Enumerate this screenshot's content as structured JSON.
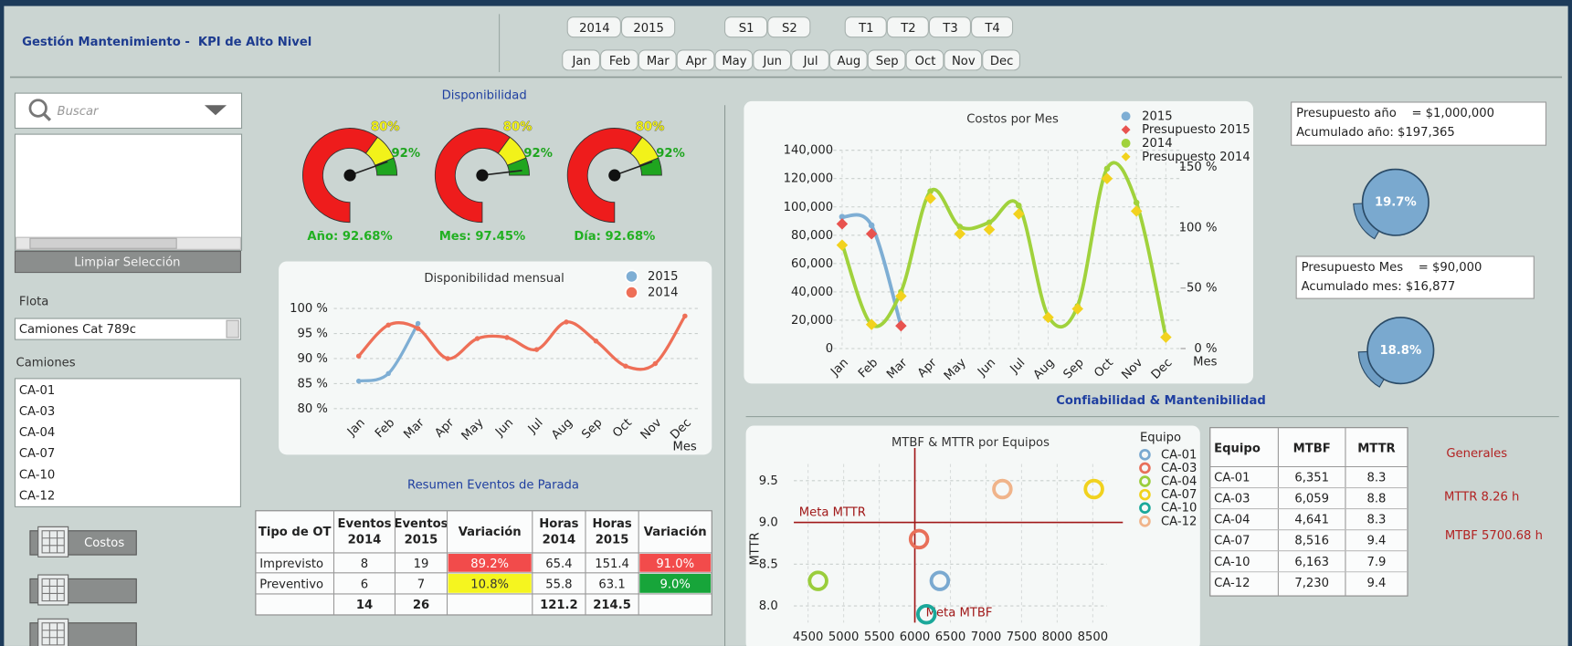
{
  "header": {
    "title": "Gestión Mantenimiento -  KPI de Alto Nivel",
    "years": [
      "2014",
      "2015"
    ],
    "semesters": [
      "S1",
      "S2"
    ],
    "quarters": [
      "T1",
      "T2",
      "T3",
      "T4"
    ],
    "months": [
      "Jan",
      "Feb",
      "Mar",
      "Apr",
      "May",
      "Jun",
      "Jul",
      "Aug",
      "Sep",
      "Oct",
      "Nov",
      "Dec"
    ]
  },
  "sidebar": {
    "search_placeholder": "Buscar",
    "clear_button": "Limpiar Selección",
    "fleet_label": "Flota",
    "fleet_value": "Camiones Cat 789c",
    "trucks_label": "Camiones",
    "trucks": [
      "CA-01",
      "CA-03",
      "CA-04",
      "CA-07",
      "CA-10",
      "CA-12"
    ],
    "costs_button": "Costos"
  },
  "availability": {
    "title": "Disponibilidad"
  },
  "events_table": {
    "title": "Resumen Eventos de Parada",
    "columns": [
      [
        "Tipo de OT"
      ],
      [
        "Eventos",
        "2014"
      ],
      [
        "Eventos",
        "2015"
      ],
      [
        "Variación"
      ],
      [
        "Horas",
        "2014"
      ],
      [
        "Horas",
        "2015"
      ],
      [
        "Variación"
      ]
    ],
    "rows": [
      [
        "Imprevisto",
        8,
        19,
        "89.2%",
        65.4,
        151.4,
        "91.0%"
      ],
      [
        "Preventivo",
        6,
        7,
        "10.8%",
        55.8,
        63.1,
        "9.0%"
      ]
    ],
    "variation_colors": [
      [
        "#f24b4b",
        "#f24b4b"
      ],
      [
        "#f5f51f",
        "#17a53a"
      ]
    ],
    "variation_text_colors": [
      [
        "#ffffff",
        "#ffffff"
      ],
      [
        "#333333",
        "#ffffff"
      ]
    ],
    "totals": {
      "eventos_2014": 14,
      "eventos_2015": 26,
      "horas_2014": 121.2,
      "horas_2015": 214.5
    }
  },
  "budget": {
    "year": {
      "budget": "Presupuesto año    = $1,000,000",
      "accumulated": "Acumulado año: $197,365",
      "percent": "19.7%"
    },
    "month": {
      "budget": "Presupuesto Mes    = $90,000",
      "accumulated": "Acumulado mes: $16,877",
      "percent": "18.8%"
    }
  },
  "reliability": {
    "title": "Confiabilidad & Mantenibilidad",
    "table": {
      "columns": [
        "Equipo",
        "MTBF",
        "MTTR"
      ],
      "rows": [
        [
          "CA-01",
          "6,351",
          8.3
        ],
        [
          "CA-03",
          "6,059",
          8.8
        ],
        [
          "CA-04",
          "4,641",
          8.3
        ],
        [
          "CA-07",
          "8,516",
          9.4
        ],
        [
          "CA-10",
          "6,163",
          7.9
        ],
        [
          "CA-12",
          "7,230",
          9.4
        ]
      ]
    },
    "general": {
      "title": "Generales",
      "mttr": "MTTR 8.26 h",
      "mtbf": "MTBF 5700.68 h"
    }
  },
  "chart_data": [
    {
      "type": "gauge",
      "values": [
        92.68
      ],
      "value_labels": [
        "Año: 92.68%"
      ],
      "ylim": [
        0,
        100
      ],
      "thresholds": [
        {
          "value": 80,
          "label": "80%"
        },
        {
          "value": 92,
          "label": "92%"
        }
      ],
      "colors": [
        "#ee1c1c",
        "#f2f21a",
        "#1fa51f"
      ]
    },
    {
      "type": "gauge",
      "values": [
        97.45
      ],
      "value_labels": [
        "Mes: 97.45%"
      ],
      "ylim": [
        0,
        100
      ],
      "thresholds": [
        {
          "value": 80,
          "label": "80%"
        },
        {
          "value": 92,
          "label": "92%"
        }
      ],
      "colors": [
        "#ee1c1c",
        "#f2f21a",
        "#1fa51f"
      ]
    },
    {
      "type": "gauge",
      "values": [
        92.68
      ],
      "value_labels": [
        "Día: 92.68%"
      ],
      "ylim": [
        0,
        100
      ],
      "thresholds": [
        {
          "value": 80,
          "label": "80%"
        },
        {
          "value": 92,
          "label": "92%"
        }
      ],
      "colors": [
        "#ee1c1c",
        "#f2f21a",
        "#1fa51f"
      ]
    },
    {
      "type": "line",
      "title": "Disponibilidad mensual",
      "x_label": "Mes",
      "categories": [
        "Jan",
        "Feb",
        "Mar",
        "Apr",
        "May",
        "Jun",
        "Jul",
        "Aug",
        "Sep",
        "Oct",
        "Nov",
        "Dec"
      ],
      "series": [
        {
          "name": "2015",
          "color": "#7eaed4",
          "values": [
            85.5,
            87,
            97,
            null,
            null,
            null,
            null,
            null,
            null,
            null,
            null,
            null
          ]
        },
        {
          "name": "2014",
          "color": "#ee6f57",
          "values": [
            90.5,
            96.7,
            96,
            90,
            94,
            94.2,
            91.8,
            97.3,
            93.5,
            88.5,
            89,
            98.5
          ]
        }
      ],
      "ylim": [
        80,
        100
      ],
      "yticks": [
        {
          "value": 80,
          "label": "80 %"
        },
        {
          "value": 85,
          "label": "85 %"
        },
        {
          "value": 90,
          "label": "90 %"
        },
        {
          "value": 95,
          "label": "95 %"
        },
        {
          "value": 100,
          "label": "100 %"
        }
      ],
      "grid": true,
      "legend": "top-right"
    },
    {
      "type": "combo",
      "title": "Costos por Mes",
      "x_label": "Mes",
      "categories": [
        "Jan",
        "Feb",
        "Mar",
        "Apr",
        "May",
        "Jun",
        "Jul",
        "Aug",
        "Sep",
        "Oct",
        "Nov",
        "Dec"
      ],
      "series": [
        {
          "name": "2015",
          "color": "#7eaed4",
          "style": "line",
          "values": [
            93000,
            87000,
            16000,
            null,
            null,
            null,
            null,
            null,
            null,
            null,
            null,
            null
          ]
        },
        {
          "name": "Presupuesto 2015",
          "color": "#e8534f",
          "style": "marker",
          "values": [
            88000,
            81000,
            16000,
            null,
            null,
            null,
            null,
            null,
            null,
            null,
            null,
            null
          ]
        },
        {
          "name": "2014",
          "color": "#a0d23c",
          "style": "line",
          "values": [
            74000,
            17000,
            40000,
            111000,
            86000,
            89000,
            101000,
            23000,
            30000,
            127000,
            103000,
            8000
          ]
        },
        {
          "name": "Presupuesto 2014",
          "color": "#f2d21e",
          "style": "marker",
          "values": [
            73000,
            17000,
            37000,
            106000,
            81000,
            84000,
            95000,
            22000,
            28000,
            120000,
            97000,
            8000
          ]
        }
      ],
      "ylim": [
        0,
        140000
      ],
      "yticks": [
        0,
        {
          "value": 20000,
          "label": "20,000"
        },
        {
          "value": 40000,
          "label": "40,000"
        },
        {
          "value": 60000,
          "label": "60,000"
        },
        {
          "value": 80000,
          "label": "80,000"
        },
        {
          "value": 100000,
          "label": "100,000"
        },
        {
          "value": 120000,
          "label": "120,000"
        },
        {
          "value": 140000,
          "label": "140,000"
        }
      ],
      "y2lim": [
        0,
        164
      ],
      "y2ticks": [
        {
          "value": 0,
          "label": "0 %"
        },
        {
          "value": 50,
          "label": "50 %"
        },
        {
          "value": 100,
          "label": "100 %"
        },
        {
          "value": 150,
          "label": "150 %"
        }
      ],
      "grid": true,
      "legend": "top-right"
    },
    {
      "type": "scatter",
      "title": "MTBF & MTTR por Equipos",
      "y_label": "MTTR",
      "legend_title": "Equipo",
      "series": [
        {
          "name": "CA-01",
          "color": "#7aa9d0",
          "x": [
            6351
          ],
          "values": [
            8.3
          ]
        },
        {
          "name": "CA-03",
          "color": "#e8705a",
          "x": [
            6059
          ],
          "values": [
            8.8
          ]
        },
        {
          "name": "CA-04",
          "color": "#9acd3c",
          "x": [
            4641
          ],
          "values": [
            8.3
          ]
        },
        {
          "name": "CA-07",
          "color": "#f1d21e",
          "x": [
            8516
          ],
          "values": [
            9.4
          ]
        },
        {
          "name": "CA-10",
          "color": "#1aa89a",
          "x": [
            6163
          ],
          "values": [
            7.9
          ]
        },
        {
          "name": "CA-12",
          "color": "#f0b48a",
          "x": [
            7230
          ],
          "values": [
            9.4
          ]
        }
      ],
      "xlim": [
        4300,
        8700
      ],
      "xticks": [
        4500,
        5000,
        5500,
        6000,
        6500,
        7000,
        7500,
        8000,
        8500
      ],
      "ylim": [
        7.8,
        9.7
      ],
      "yticks": [
        {
          "value": 8,
          "label": "8.0"
        },
        8.5,
        {
          "value": 9,
          "label": "9.0"
        },
        9.5
      ],
      "reference_lines": [
        {
          "label": "Meta MTTR",
          "axis": "y",
          "value": 9
        },
        {
          "label": "Meta MTBF",
          "axis": "x",
          "value": 6000
        }
      ],
      "grid": true,
      "legend": "right"
    }
  ]
}
